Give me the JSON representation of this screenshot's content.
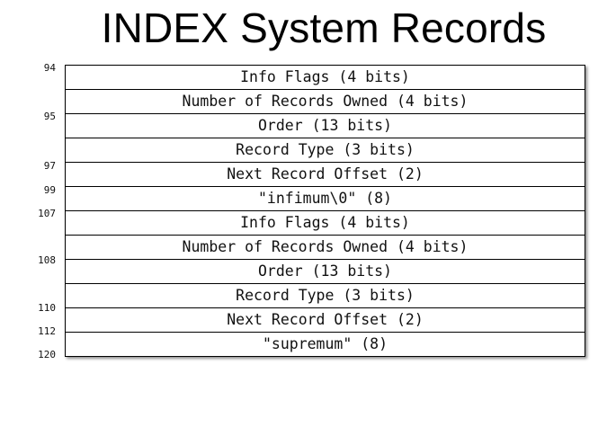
{
  "title": "INDEX System Records",
  "rows": [
    "Info Flags (4 bits)",
    "Number of Records Owned (4 bits)",
    "Order (13 bits)",
    "Record Type (3 bits)",
    "Next Record Offset (2)",
    "\"infimum\\0\" (8)",
    "Info Flags (4 bits)",
    "Number of Records Owned (4 bits)",
    "Order (13 bits)",
    "Record Type (3 bits)",
    "Next Record Offset (2)",
    "\"supremum\" (8)"
  ],
  "offsets": [
    "94",
    "95",
    "97",
    "99",
    "107",
    "108",
    "110",
    "112",
    "120"
  ]
}
